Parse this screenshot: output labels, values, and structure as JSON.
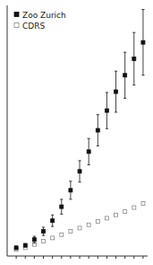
{
  "chart_data": {
    "type": "scatter",
    "title": "",
    "x": [
      1,
      2,
      3,
      4,
      5,
      6,
      7,
      8,
      9,
      10,
      11,
      12,
      13,
      14,
      15
    ],
    "series": [
      {
        "name": "Zoo Zurich",
        "color": "#111111",
        "marker": "square",
        "values": [
          5,
          8,
          15,
          25,
          38,
          55,
          75,
          98,
          122,
          148,
          172,
          195,
          215,
          235,
          255
        ],
        "yerr_low": [
          2,
          2,
          4,
          5,
          7,
          9,
          11,
          13,
          16,
          19,
          22,
          25,
          28,
          32,
          40
        ],
        "yerr_high": [
          2,
          2,
          4,
          5,
          7,
          9,
          11,
          13,
          16,
          19,
          22,
          25,
          28,
          32,
          40
        ]
      },
      {
        "name": "CDRS",
        "color": "#888888",
        "marker": "square-open",
        "values": [
          3,
          5,
          9,
          13,
          17,
          21,
          25,
          29,
          33,
          37,
          41,
          45,
          49,
          54,
          59
        ],
        "yerr_low": [
          0.5,
          0.5,
          0.5,
          0.5,
          0.5,
          0.5,
          0.5,
          0.5,
          0.5,
          0.5,
          0.5,
          0.5,
          0.5,
          0.5,
          0.5
        ],
        "yerr_high": [
          0.5,
          0.5,
          0.5,
          0.5,
          0.5,
          0.5,
          0.5,
          0.5,
          0.5,
          0.5,
          0.5,
          0.5,
          0.5,
          0.5,
          0.5
        ]
      }
    ],
    "xlim": [
      0,
      15.5
    ],
    "ylim": [
      -5,
      300
    ],
    "xticks": [
      1,
      2,
      3,
      4,
      5,
      6,
      7,
      8,
      9,
      10,
      11,
      12,
      13,
      14,
      15
    ],
    "yticks": [],
    "tick_labels": false,
    "legend": "upper left"
  }
}
